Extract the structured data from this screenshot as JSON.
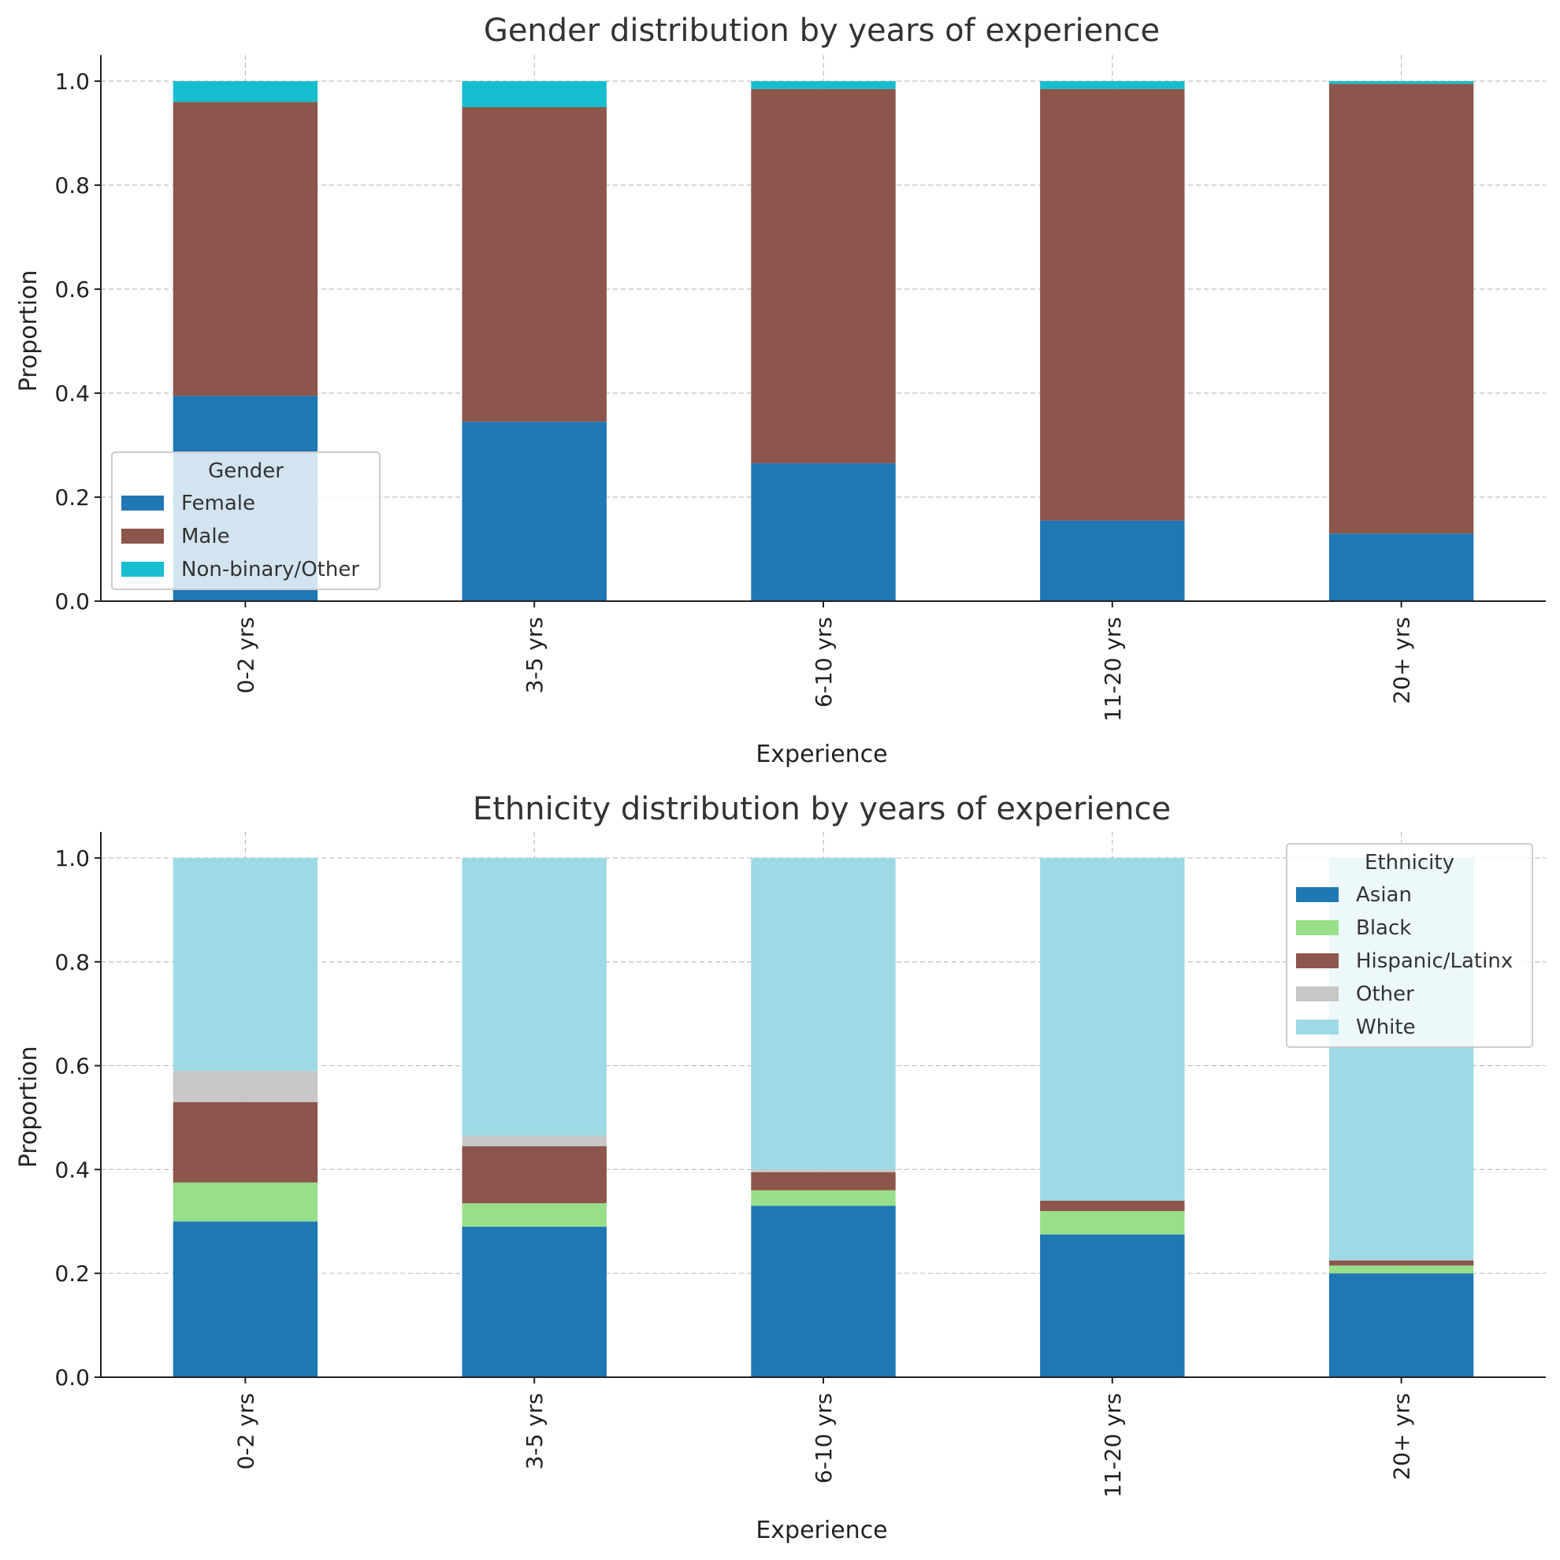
{
  "chart_data": [
    {
      "type": "bar",
      "stacked": true,
      "title": "Gender distribution by years of experience",
      "xlabel": "Experience",
      "ylabel": "Proportion",
      "ylim": [
        0,
        1.05
      ],
      "yticks": [
        "0.0",
        "0.2",
        "0.4",
        "0.6",
        "0.8",
        "1.0"
      ],
      "grid": true,
      "categories": [
        "0-2 yrs",
        "3-5 yrs",
        "6-10 yrs",
        "11-20 yrs",
        "20+ yrs"
      ],
      "legend": {
        "title": "Gender",
        "placement": "lower-left"
      },
      "series": [
        {
          "name": "Female",
          "color": "#1f77b4",
          "values": [
            0.395,
            0.345,
            0.265,
            0.155,
            0.13
          ]
        },
        {
          "name": "Male",
          "color": "#8c564b",
          "values": [
            0.565,
            0.605,
            0.72,
            0.83,
            0.865
          ]
        },
        {
          "name": "Non-binary/Other",
          "color": "#17becf",
          "values": [
            0.04,
            0.05,
            0.015,
            0.015,
            0.005
          ]
        }
      ]
    },
    {
      "type": "bar",
      "stacked": true,
      "title": "Ethnicity distribution by years of experience",
      "xlabel": "Experience",
      "ylabel": "Proportion",
      "ylim": [
        0,
        1.05
      ],
      "yticks": [
        "0.0",
        "0.2",
        "0.4",
        "0.6",
        "0.8",
        "1.0"
      ],
      "grid": true,
      "categories": [
        "0-2 yrs",
        "3-5 yrs",
        "6-10 yrs",
        "11-20 yrs",
        "20+ yrs"
      ],
      "legend": {
        "title": "Ethnicity",
        "placement": "upper-right"
      },
      "series": [
        {
          "name": "Asian",
          "color": "#1f77b4",
          "values": [
            0.3,
            0.29,
            0.33,
            0.275,
            0.2
          ]
        },
        {
          "name": "Black",
          "color": "#98df8a",
          "values": [
            0.075,
            0.045,
            0.03,
            0.045,
            0.015
          ]
        },
        {
          "name": "Hispanic/Latinx",
          "color": "#8c564b",
          "values": [
            0.155,
            0.11,
            0.035,
            0.02,
            0.01
          ]
        },
        {
          "name": "Other",
          "color": "#c7c7c7",
          "values": [
            0.06,
            0.02,
            0.005,
            0.0,
            0.0
          ]
        },
        {
          "name": "White",
          "color": "#9edae5",
          "values": [
            0.41,
            0.535,
            0.6,
            0.66,
            0.775
          ]
        }
      ]
    }
  ]
}
